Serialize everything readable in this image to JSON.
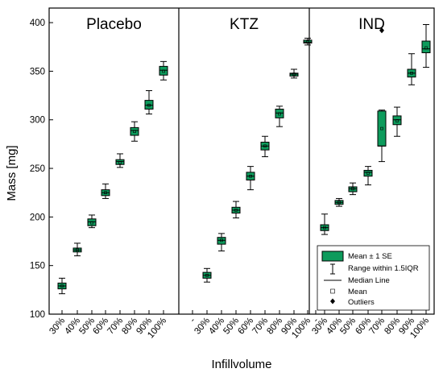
{
  "chart_data": {
    "type": "box",
    "ylabel": "Mass [mg]",
    "xlabel": "Infillvolume",
    "ylim": [
      100,
      415
    ],
    "yticks": [
      100,
      150,
      200,
      250,
      300,
      350,
      400
    ],
    "colors": {
      "box": "#0d9b5c",
      "stroke": "#000000"
    },
    "legend": {
      "placement": "bottom-right",
      "entries": [
        "Mean ± 1 SE",
        "Range within 1.5IQR",
        "Median Line",
        "Mean",
        "Outliers"
      ]
    },
    "panels": [
      {
        "title": "Placebo",
        "categories": [
          "30%",
          "40%",
          "50%",
          "60%",
          "70%",
          "80%",
          "90%",
          "100%"
        ],
        "stats": [
          {
            "mean": 129,
            "se_low": 126,
            "se_high": 132,
            "median": 129,
            "wlow": 121,
            "whigh": 137,
            "outliers": []
          },
          {
            "mean": 166,
            "se_low": 164,
            "se_high": 168,
            "median": 166,
            "wlow": 160,
            "whigh": 173,
            "outliers": []
          },
          {
            "mean": 194,
            "se_low": 191,
            "se_high": 198,
            "median": 195,
            "wlow": 189,
            "whigh": 202,
            "outliers": []
          },
          {
            "mean": 225,
            "se_low": 222,
            "se_high": 228,
            "median": 225,
            "wlow": 219,
            "whigh": 234,
            "outliers": []
          },
          {
            "mean": 256,
            "se_low": 254,
            "se_high": 259,
            "median": 257,
            "wlow": 251,
            "whigh": 265,
            "outliers": []
          },
          {
            "mean": 288,
            "se_low": 284,
            "se_high": 292,
            "median": 289,
            "wlow": 278,
            "whigh": 298,
            "outliers": []
          },
          {
            "mean": 315,
            "se_low": 311,
            "se_high": 320,
            "median": 315,
            "wlow": 306,
            "whigh": 330,
            "outliers": []
          },
          {
            "mean": 350,
            "se_low": 346,
            "se_high": 355,
            "median": 351,
            "wlow": 341,
            "whigh": 360,
            "outliers": []
          }
        ]
      },
      {
        "title": "KTZ",
        "categories": [
          "-",
          "30%",
          "40%",
          "50%",
          "60%",
          "70%",
          "80%",
          "90%",
          "100%"
        ],
        "stats": [
          null,
          {
            "mean": 140,
            "se_low": 137,
            "se_high": 143,
            "median": 140,
            "wlow": 133,
            "whigh": 147,
            "outliers": []
          },
          {
            "mean": 176,
            "se_low": 172,
            "se_high": 179,
            "median": 176,
            "wlow": 165,
            "whigh": 183,
            "outliers": []
          },
          {
            "mean": 207,
            "se_low": 204,
            "se_high": 210,
            "median": 207,
            "wlow": 199,
            "whigh": 216,
            "outliers": []
          },
          {
            "mean": 242,
            "se_low": 238,
            "se_high": 246,
            "median": 242,
            "wlow": 228,
            "whigh": 252,
            "outliers": []
          },
          {
            "mean": 273,
            "se_low": 269,
            "se_high": 277,
            "median": 273,
            "wlow": 262,
            "whigh": 283,
            "outliers": []
          },
          {
            "mean": 306,
            "se_low": 302,
            "se_high": 311,
            "median": 307,
            "wlow": 293,
            "whigh": 314,
            "outliers": []
          },
          {
            "mean": 347,
            "se_low": 345,
            "se_high": 348,
            "median": 347,
            "wlow": 343,
            "whigh": 352,
            "outliers": []
          },
          {
            "mean": 380,
            "se_low": 379,
            "se_high": 382,
            "median": 380,
            "wlow": 377,
            "whigh": 384,
            "outliers": []
          }
        ]
      },
      {
        "title": "IND",
        "categories": [
          "-",
          "30%",
          "40%",
          "50%",
          "60%",
          "70%",
          "80%",
          "90%",
          "100%"
        ],
        "stats": [
          null,
          {
            "mean": 189,
            "se_low": 186,
            "se_high": 192,
            "median": 189,
            "wlow": 182,
            "whigh": 203,
            "outliers": []
          },
          {
            "mean": 215,
            "se_low": 213,
            "se_high": 217,
            "median": 215,
            "wlow": 211,
            "whigh": 219,
            "outliers": []
          },
          {
            "mean": 229,
            "se_low": 226,
            "se_high": 231,
            "median": 229,
            "wlow": 223,
            "whigh": 235,
            "outliers": []
          },
          {
            "mean": 245,
            "se_low": 242,
            "se_high": 248,
            "median": 246,
            "wlow": 233,
            "whigh": 252,
            "outliers": []
          },
          {
            "mean": 291,
            "se_low": 273,
            "se_high": 309,
            "median": 273,
            "wlow": 257,
            "whigh": 310,
            "outliers": [
              392
            ]
          },
          {
            "mean": 299,
            "se_low": 295,
            "se_high": 304,
            "median": 300,
            "wlow": 283,
            "whigh": 313,
            "outliers": []
          },
          {
            "mean": 348,
            "se_low": 344,
            "se_high": 352,
            "median": 348,
            "wlow": 336,
            "whigh": 368,
            "outliers": []
          },
          {
            "mean": 374,
            "se_low": 369,
            "se_high": 381,
            "median": 373,
            "wlow": 354,
            "whigh": 398,
            "outliers": []
          }
        ]
      }
    ]
  }
}
